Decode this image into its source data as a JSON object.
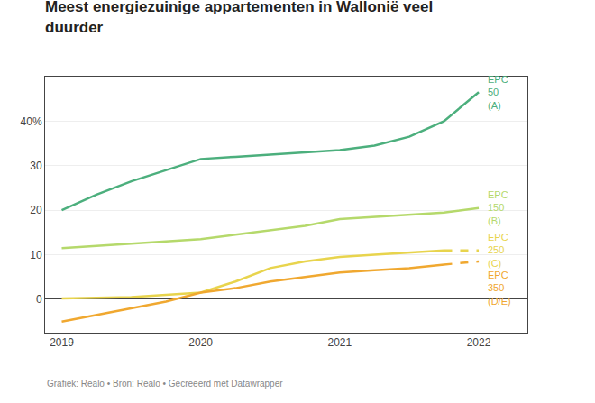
{
  "chart_data": {
    "type": "line",
    "title": "Meest energiezuinige appartementen in Wallonië veel\nduurder",
    "annotations": [
      "Grafiek: Realo • Bron: Realo • Gecreëerd met Datawrapper"
    ],
    "x": [
      2019,
      2019.25,
      2019.5,
      2019.75,
      2020,
      2020.25,
      2020.5,
      2020.75,
      2021,
      2021.25,
      2021.5,
      2021.75,
      2022
    ],
    "series": [
      {
        "name": "EPC\n50\n(A)",
        "color": "#4caf7d",
        "line_style": "solid",
        "values": [
          20.0,
          23.5,
          26.5,
          29.0,
          31.5,
          32.0,
          32.5,
          33.0,
          33.5,
          34.5,
          36.5,
          40.0,
          46.5
        ]
      },
      {
        "name": "EPC\n150\n(B)",
        "color": "#b5d96b",
        "line_style": "solid",
        "values": [
          11.5,
          12.0,
          12.5,
          13.0,
          13.5,
          14.5,
          15.5,
          16.5,
          18.0,
          18.5,
          19.0,
          19.5,
          20.5
        ]
      },
      {
        "name": "EPC\n250\n(C)",
        "color": "#e8d44d",
        "line_style": "dashed_end",
        "values": [
          0.2,
          0.3,
          0.5,
          1.0,
          1.5,
          4.0,
          7.0,
          8.5,
          9.5,
          10.0,
          10.5,
          11.0,
          11.0
        ]
      },
      {
        "name": "EPC\n350\n(D/E)",
        "color": "#f0a830",
        "line_style": "dashed_end",
        "values": [
          -5.0,
          -3.5,
          -2.0,
          -0.5,
          1.5,
          2.5,
          4.0,
          5.0,
          6.0,
          6.5,
          7.0,
          7.8,
          8.5
        ]
      }
    ],
    "xlim": [
      2018.88,
      2022.35
    ],
    "xticks": [
      2019,
      2020,
      2021,
      2022
    ],
    "ylim": [
      -7.5,
      50
    ],
    "yticks": [
      0,
      10,
      20,
      30,
      {
        "value": 40,
        "label": "40%"
      }
    ],
    "grid": true
  }
}
